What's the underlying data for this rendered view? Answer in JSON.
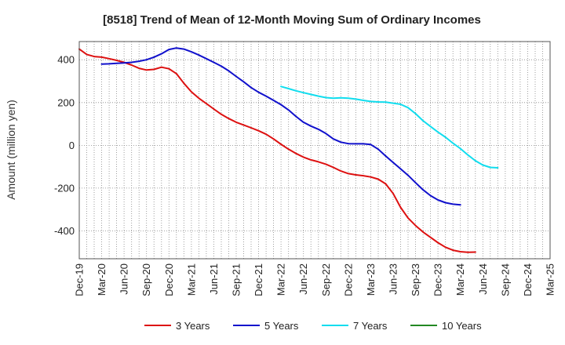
{
  "chart_data": {
    "type": "line",
    "title": "[8518]  Trend of Mean of 12-Month Moving Sum of Ordinary Incomes",
    "xlabel": "",
    "ylabel": "Amount (million yen)",
    "ylim": [
      -530,
      485
    ],
    "yticks": [
      -400,
      -200,
      0,
      200,
      400
    ],
    "xlim": [
      "Dec-19",
      "Mar-25"
    ],
    "x_tick_labels": [
      "Dec-19",
      "Mar-20",
      "Jun-20",
      "Sep-20",
      "Dec-20",
      "Mar-21",
      "Jun-21",
      "Sep-21",
      "Dec-21",
      "Mar-22",
      "Jun-22",
      "Sep-22",
      "Dec-22",
      "Mar-23",
      "Jun-23",
      "Sep-23",
      "Dec-23",
      "Mar-24",
      "Jun-24",
      "Sep-24",
      "Dec-24",
      "Mar-25"
    ],
    "grid": true,
    "legend_position": "bottom",
    "series": [
      {
        "name": "3 Years",
        "color": "#dd1111",
        "start": "Dec-19",
        "values": [
          450,
          425,
          415,
          412,
          405,
          397,
          388,
          375,
          360,
          352,
          355,
          365,
          358,
          335,
          290,
          250,
          220,
          195,
          170,
          145,
          125,
          108,
          95,
          82,
          68,
          52,
          30,
          5,
          -18,
          -38,
          -55,
          -68,
          -77,
          -88,
          -103,
          -120,
          -132,
          -138,
          -142,
          -148,
          -158,
          -180,
          -225,
          -290,
          -340,
          -375,
          -405,
          -430,
          -455,
          -476,
          -490,
          -497,
          -500,
          -499
        ]
      },
      {
        "name": "5 Years",
        "color": "#1111cc",
        "start": "Mar-20",
        "values": [
          380,
          381,
          383,
          385,
          388,
          393,
          400,
          412,
          428,
          448,
          455,
          450,
          437,
          422,
          405,
          388,
          370,
          348,
          322,
          297,
          270,
          248,
          230,
          210,
          190,
          165,
          135,
          108,
          90,
          75,
          55,
          30,
          15,
          8,
          7,
          7,
          4,
          -18,
          -50,
          -80,
          -110,
          -140,
          -175,
          -208,
          -235,
          -255,
          -268,
          -275,
          -278
        ]
      },
      {
        "name": "7 Years",
        "color": "#11ddee",
        "start": "Mar-22",
        "values": [
          275,
          265,
          255,
          246,
          238,
          230,
          223,
          220,
          222,
          220,
          216,
          210,
          205,
          203,
          202,
          197,
          192,
          176,
          148,
          115,
          88,
          62,
          38,
          10,
          -15,
          -45,
          -72,
          -92,
          -103,
          -105
        ]
      },
      {
        "name": "10 Years",
        "color": "#228822",
        "start": "Mar-25",
        "values": []
      }
    ]
  }
}
